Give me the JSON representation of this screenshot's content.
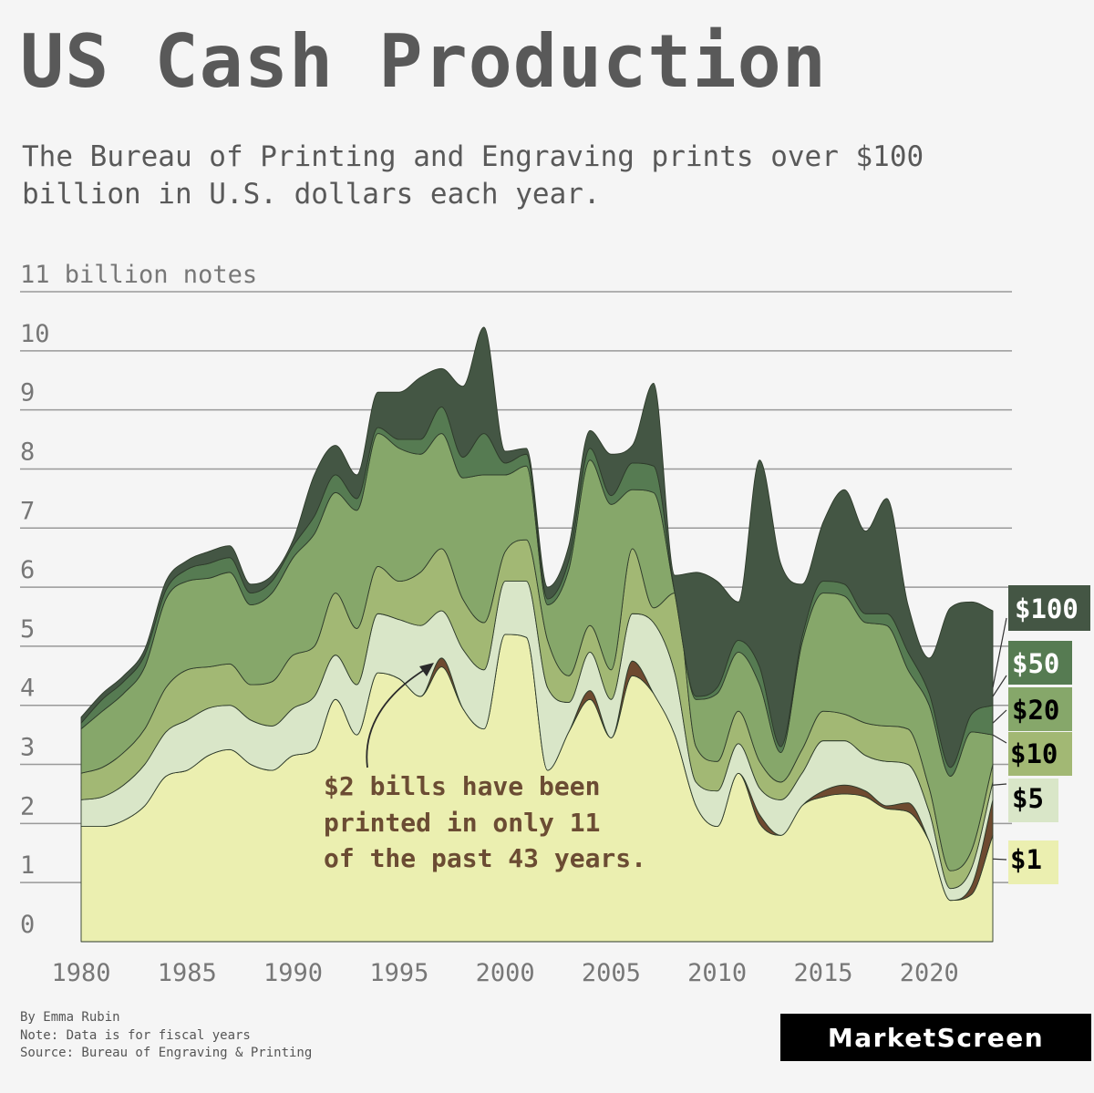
{
  "title": "US Cash Production",
  "subtitle": "The Bureau of Printing and Engraving prints over $100 billion in U.S. dollars each year.",
  "footer": {
    "byline": "By Emma Rubin",
    "note": "Note: Data is for fiscal years",
    "source": "Source: Bureau of Engraving & Printing"
  },
  "logo": "MarketScreen",
  "annotation": {
    "lines": [
      "$2 bills have been",
      "printed in only 11",
      "of the past 43 years."
    ]
  },
  "colors": {
    "$1": "#ebefb0",
    "$2": "#6e4a30",
    "$5": "#d9e6c8",
    "$10": "#a2b874",
    "$20": "#86a76a",
    "$50": "#567b52",
    "$100": "#445644",
    "grid": "#999999",
    "axis_text": "#777777",
    "annotation": "#6b4c33"
  },
  "chart_data": {
    "type": "area",
    "stacked": true,
    "smooth": true,
    "ylabel_top": "11 billion notes",
    "y_ticks": [
      0,
      1,
      2,
      3,
      4,
      5,
      6,
      7,
      8,
      9,
      10
    ],
    "ylim": [
      0,
      11
    ],
    "x_ticks": [
      1980,
      1985,
      1990,
      1995,
      2000,
      2005,
      2010,
      2015,
      2020
    ],
    "xlim": [
      1980,
      2023
    ],
    "unit": "billion notes",
    "x": [
      1980,
      1981,
      1982,
      1983,
      1984,
      1985,
      1986,
      1987,
      1988,
      1989,
      1990,
      1991,
      1992,
      1993,
      1994,
      1995,
      1996,
      1997,
      1998,
      1999,
      2000,
      2001,
      2002,
      2003,
      2004,
      2005,
      2006,
      2007,
      2008,
      2009,
      2010,
      2011,
      2012,
      2013,
      2014,
      2015,
      2016,
      2017,
      2018,
      2019,
      2020,
      2021,
      2022,
      2023
    ],
    "series": [
      {
        "name": "$1",
        "values": [
          1.95,
          1.95,
          2.05,
          2.3,
          2.8,
          2.9,
          3.15,
          3.25,
          3.0,
          2.9,
          3.15,
          3.25,
          4.1,
          3.5,
          4.55,
          4.45,
          4.15,
          4.65,
          3.95,
          3.6,
          5.2,
          5.15,
          2.9,
          3.55,
          4.1,
          3.45,
          4.5,
          4.2,
          3.5,
          2.3,
          1.95,
          2.85,
          2.0,
          1.8,
          2.3,
          2.45,
          2.5,
          2.45,
          2.25,
          2.2,
          1.7,
          0.7,
          0.8,
          1.8
        ]
      },
      {
        "name": "$2",
        "values": [
          0,
          0,
          0,
          0,
          0,
          0,
          0,
          0,
          0,
          0,
          0,
          0,
          0,
          0,
          0,
          0,
          0,
          0.15,
          0,
          0,
          0,
          0,
          0,
          0,
          0.15,
          0,
          0.25,
          0,
          0,
          0,
          0,
          0,
          0.15,
          0,
          0,
          0.1,
          0.15,
          0.1,
          0.05,
          0.15,
          0,
          0,
          0.15,
          0.6
        ]
      },
      {
        "name": "$5",
        "values": [
          0.45,
          0.5,
          0.6,
          0.7,
          0.75,
          0.85,
          0.8,
          0.75,
          0.75,
          0.75,
          0.8,
          0.9,
          0.75,
          0.85,
          1.0,
          1.0,
          1.2,
          0.8,
          1.0,
          1.0,
          0.9,
          0.95,
          1.4,
          0.5,
          0.65,
          0.65,
          0.8,
          1.2,
          1.05,
          0.4,
          0.6,
          0.5,
          0.45,
          0.6,
          0.55,
          0.85,
          0.75,
          0.6,
          0.75,
          0.65,
          0.5,
          0.2,
          0.3,
          0.3
        ]
      },
      {
        "name": "$10",
        "values": [
          0.45,
          0.5,
          0.55,
          0.6,
          0.75,
          0.85,
          0.7,
          0.7,
          0.6,
          0.75,
          0.9,
          0.85,
          1.05,
          0.95,
          0.8,
          0.65,
          0.9,
          1.05,
          0.85,
          0.8,
          0.5,
          0.7,
          0.8,
          0.45,
          0.45,
          0.5,
          1.1,
          0.25,
          1.35,
          0.6,
          0.5,
          0.55,
          0.45,
          0.3,
          0.4,
          0.5,
          0.45,
          0.55,
          0.6,
          0.6,
          0.4,
          0.3,
          0.3,
          0.3
        ]
      },
      {
        "name": "$20",
        "values": [
          0.75,
          0.95,
          1.0,
          1.05,
          1.5,
          1.5,
          1.5,
          1.55,
          1.35,
          1.5,
          1.65,
          1.9,
          1.7,
          2.0,
          2.25,
          2.25,
          2.0,
          1.95,
          2.05,
          2.5,
          1.3,
          1.25,
          0.6,
          1.8,
          2.8,
          2.8,
          1.0,
          1.95,
          0.0,
          0.8,
          1.15,
          1.0,
          1.3,
          0.5,
          1.8,
          2.0,
          2.0,
          1.7,
          1.7,
          1.0,
          1.4,
          1.6,
          2.0,
          0.5
        ]
      },
      {
        "name": "$50",
        "values": [
          0.1,
          0.2,
          0.2,
          0.2,
          0.15,
          0.2,
          0.25,
          0.25,
          0.2,
          0.2,
          0.2,
          0.3,
          0.3,
          0.2,
          0.1,
          0.15,
          0.25,
          0.45,
          0.35,
          0.7,
          0.2,
          0.2,
          0.1,
          0.15,
          0.2,
          0.15,
          0.45,
          0.45,
          0.0,
          0.05,
          0.1,
          0.2,
          0.3,
          0.1,
          0.1,
          0.2,
          0.2,
          0.15,
          0.2,
          0.3,
          0.2,
          0.15,
          0.3,
          0.5
        ]
      },
      {
        "name": "$100",
        "values": [
          0.1,
          0.1,
          0.1,
          0.1,
          0.15,
          0.15,
          0.2,
          0.2,
          0.15,
          0.1,
          0.1,
          0.7,
          0.5,
          0.4,
          0.6,
          0.8,
          1.05,
          0.65,
          1.2,
          1.8,
          0.2,
          0.1,
          0.2,
          0.25,
          0.3,
          0.7,
          0.3,
          1.4,
          0.3,
          2.1,
          1.8,
          0.65,
          3.5,
          3.1,
          0.9,
          1.0,
          1.6,
          1.4,
          1.95,
          0.8,
          0.6,
          2.7,
          1.9,
          1.6
        ]
      }
    ],
    "legend": [
      "$100",
      "$50",
      "$20",
      "$10",
      "$5",
      "$1"
    ],
    "legend_position": "right"
  }
}
